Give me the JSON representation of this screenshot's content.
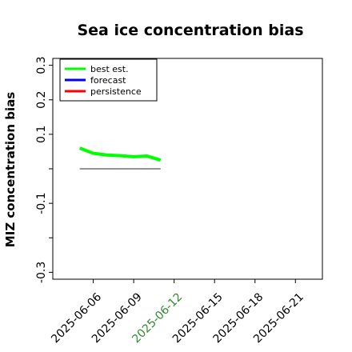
{
  "chart_data": {
    "type": "line",
    "title": "Sea ice concentration bias",
    "ylabel": "MIZ concentration bias",
    "xlabel": "",
    "ylim": [
      -0.32,
      0.32
    ],
    "xlim": [
      "2025-06-03",
      "2025-06-23"
    ],
    "y_ticks": [
      {
        "value": -0.3,
        "label": "-0.3"
      },
      {
        "value": -0.2,
        "label": ""
      },
      {
        "value": -0.1,
        "label": "-0.1"
      },
      {
        "value": 0.0,
        "label": ""
      },
      {
        "value": 0.1,
        "label": "0.1"
      },
      {
        "value": 0.2,
        "label": "0.2"
      },
      {
        "value": 0.3,
        "label": "0.3"
      }
    ],
    "x_ticks": [
      {
        "date": "2025-06-06",
        "label": "2025-06-06",
        "color": "#000000"
      },
      {
        "date": "2025-06-09",
        "label": "2025-06-09",
        "color": "#000000"
      },
      {
        "date": "2025-06-12",
        "label": "2025-06-12",
        "color": "#2e8b2e"
      },
      {
        "date": "2025-06-15",
        "label": "2025-06-15",
        "color": "#000000"
      },
      {
        "date": "2025-06-18",
        "label": "2025-06-18",
        "color": "#000000"
      },
      {
        "date": "2025-06-21",
        "label": "2025-06-21",
        "color": "#000000"
      }
    ],
    "grid": false,
    "legend_position": "top-left",
    "series": [
      {
        "name": "best est.",
        "color": "#00ff00",
        "x": [
          "2025-06-05",
          "2025-06-06",
          "2025-06-07",
          "2025-06-08",
          "2025-06-09",
          "2025-06-10",
          "2025-06-11"
        ],
        "y": [
          0.06,
          0.045,
          0.04,
          0.038,
          0.035,
          0.037,
          0.025
        ]
      },
      {
        "name": "forecast",
        "color": "#0000ff",
        "x": [],
        "y": []
      },
      {
        "name": "persistence",
        "color": "#ff0000",
        "x": [],
        "y": []
      }
    ],
    "reference_line": {
      "x": [
        "2025-06-05",
        "2025-06-11"
      ],
      "y": [
        0.0,
        0.0
      ],
      "color": "#555555"
    }
  }
}
